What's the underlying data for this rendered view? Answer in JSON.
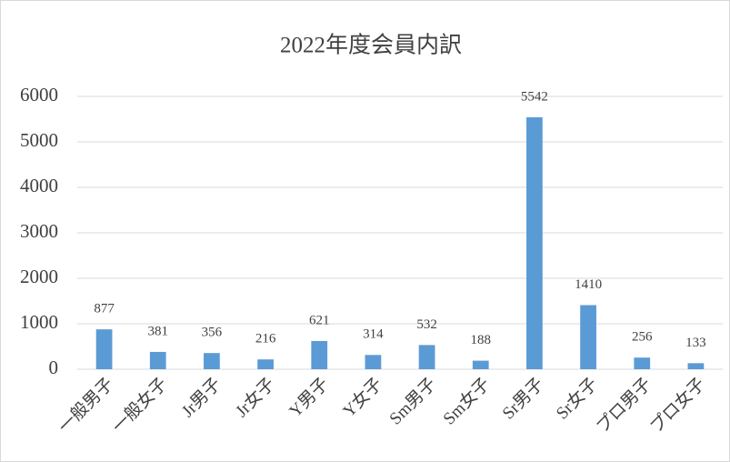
{
  "chart_data": {
    "type": "bar",
    "title": "2022年度会員内訳",
    "categories": [
      "一般男子",
      "一般女子",
      "Jr男子",
      "Jr女子",
      "Y男子",
      "Y女子",
      "Sm男子",
      "Sm女子",
      "Sr男子",
      "Sr女子",
      "プロ男子",
      "プロ女子"
    ],
    "values": [
      877,
      381,
      356,
      216,
      621,
      314,
      532,
      188,
      5542,
      1410,
      256,
      133
    ],
    "color": "#5b9bd5",
    "ylim": [
      0,
      6000
    ],
    "yticks": [
      0,
      1000,
      2000,
      3000,
      4000,
      5000,
      6000
    ],
    "grid": true
  }
}
